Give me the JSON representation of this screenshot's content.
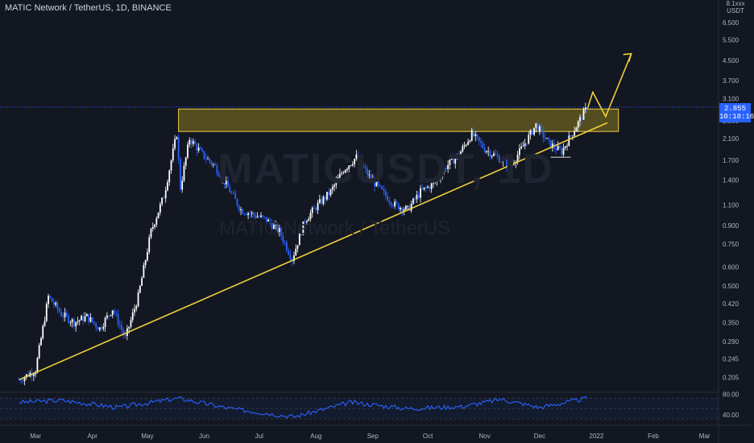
{
  "header": {
    "symbol_title": "MATIC Network / TetherUS, 1D, BINANCE"
  },
  "watermark": {
    "line1": "MATICUSDT, 1D",
    "line2": "MATIC Network / TetherUS"
  },
  "price_scale": {
    "unit_line1": "8.1xxx",
    "unit_line2": "USDT",
    "last_price": "2.855",
    "countdown": "10:18:16",
    "tag_color": "#2962ff"
  },
  "rsi_scale": {
    "upper": "80.00",
    "lower": "40.00",
    "color": "#2962ff"
  },
  "colors": {
    "up": "#ffffff",
    "down": "#2962ff",
    "trendline": "#f0d03c",
    "zone_fill": "#8a7a1e"
  },
  "chart_data": {
    "type": "line",
    "title": "MATIC Network / TetherUS, 1D, BINANCE",
    "xlabel": "",
    "ylabel": "",
    "y_scale": "log",
    "ylim": [
      0.18,
      8.1
    ],
    "grid": false,
    "x_ticks": [
      "Mar",
      "Apr",
      "May",
      "Jun",
      "Jul",
      "Aug",
      "Sep",
      "Oct",
      "Nov",
      "Dec",
      "2022",
      "Feb",
      "Mar"
    ],
    "y_ticks": [
      "6.500",
      "5.500",
      "4.500",
      "3.700",
      "3.100",
      "2.500",
      "2.100",
      "1.700",
      "1.400",
      "1.100",
      "0.900",
      "0.750",
      "0.600",
      "0.500",
      "0.420",
      "0.350",
      "0.290",
      "0.245",
      "0.205"
    ],
    "y_tick_values": [
      6.5,
      5.5,
      4.5,
      3.7,
      3.1,
      2.5,
      2.1,
      1.7,
      1.4,
      1.1,
      0.9,
      0.75,
      0.6,
      0.5,
      0.42,
      0.35,
      0.29,
      0.245,
      0.205
    ],
    "series": [
      {
        "x": [
          "2021-02-20",
          "2021-03-01",
          "2021-03-08",
          "2021-03-15",
          "2021-03-22",
          "2021-03-29",
          "2021-04-05",
          "2021-04-12",
          "2021-04-19",
          "2021-04-26",
          "2021-05-03",
          "2021-05-10",
          "2021-05-17",
          "2021-05-19",
          "2021-05-24",
          "2021-05-31",
          "2021-06-07",
          "2021-06-14",
          "2021-06-21",
          "2021-06-28",
          "2021-07-05",
          "2021-07-12",
          "2021-07-19",
          "2021-07-26",
          "2021-08-02",
          "2021-08-09",
          "2021-08-16",
          "2021-08-23",
          "2021-08-30",
          "2021-09-06",
          "2021-09-13",
          "2021-09-20",
          "2021-09-27",
          "2021-10-04",
          "2021-10-11",
          "2021-10-18",
          "2021-10-25",
          "2021-11-01",
          "2021-11-08",
          "2021-11-15",
          "2021-11-22",
          "2021-11-29",
          "2021-12-06",
          "2021-12-13",
          "2021-12-20",
          "2021-12-27"
        ],
        "values": [
          0.2,
          0.22,
          0.45,
          0.38,
          0.35,
          0.37,
          0.33,
          0.4,
          0.3,
          0.45,
          0.85,
          1.2,
          2.2,
          1.3,
          2.1,
          1.8,
          1.6,
          1.3,
          1.05,
          1.0,
          0.95,
          0.85,
          0.65,
          0.95,
          1.1,
          1.25,
          1.55,
          1.75,
          1.45,
          1.25,
          1.1,
          1.05,
          1.25,
          1.35,
          1.6,
          1.8,
          2.2,
          1.9,
          1.75,
          1.6,
          1.95,
          2.4,
          2.0,
          1.85,
          2.3,
          2.855
        ]
      }
    ],
    "rsi": {
      "x": [
        "2021-02-20",
        "2021-03-15",
        "2021-04-15",
        "2021-05-18",
        "2021-06-15",
        "2021-07-20",
        "2021-08-20",
        "2021-09-20",
        "2021-10-20",
        "2021-11-10",
        "2021-12-01",
        "2021-12-27"
      ],
      "values": [
        62,
        66,
        52,
        70,
        50,
        34,
        62,
        50,
        54,
        68,
        52,
        70
      ]
    },
    "annotations": {
      "trendline": [
        [
          "2021-02-20",
          0.2
        ],
        [
          "2021-12-27",
          2.3
        ]
      ],
      "resistance_zone": {
        "x": [
          "2021-05-18",
          "2022-01-13"
        ],
        "y": [
          2.25,
          2.8
        ]
      },
      "projection": [
        [
          "2021-12-27",
          2.8
        ],
        [
          "2021-12-30",
          3.3
        ],
        [
          "2022-01-06",
          2.6
        ],
        [
          "2022-01-20",
          4.8
        ]
      ],
      "support_marker": {
        "x": [
          "2021-12-07",
          "2021-12-18"
        ],
        "y": 1.75
      }
    }
  }
}
